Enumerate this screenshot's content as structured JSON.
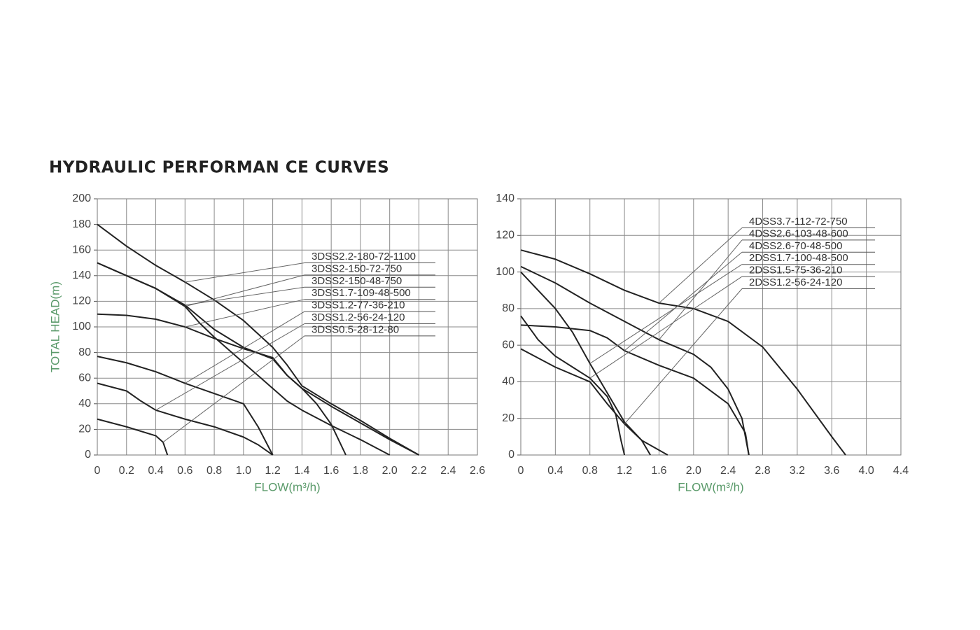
{
  "title": "HYDRAULIC PERFORMAN CE CURVES",
  "chart_data": [
    {
      "type": "line",
      "xlabel": "FLOW(m³/h)",
      "ylabel": "TOTAL HEAD(m)",
      "xlim": [
        0,
        2.6
      ],
      "ylim": [
        0,
        200
      ],
      "xticks": [
        0,
        0.2,
        0.4,
        0.6,
        0.8,
        {
          "value": 1,
          "label": "1.0"
        },
        1.2,
        1.4,
        1.6,
        1.8,
        {
          "value": 2,
          "label": "2.0"
        },
        2.2,
        2.4,
        2.6
      ],
      "yticks": [
        0,
        20,
        40,
        60,
        80,
        100,
        120,
        140,
        160,
        180,
        200
      ],
      "grid": true,
      "series": [
        {
          "name": "3DSS2.2-180-72-1100",
          "color": "#222222",
          "x": [
            0,
            0.2,
            0.4,
            0.6,
            0.8,
            1.0,
            1.2,
            1.3,
            1.4,
            1.6,
            1.8,
            2.0,
            2.2
          ],
          "values": [
            180,
            163,
            148,
            135,
            121,
            105,
            84,
            70,
            54,
            40,
            27,
            13,
            0
          ]
        },
        {
          "name": "3DSS2-150-72-750",
          "color": "#222222",
          "x": [
            0,
            0.2,
            0.4,
            0.6,
            0.7,
            0.8,
            1.0,
            1.2,
            1.3,
            1.4,
            1.6,
            1.8,
            2.0
          ],
          "values": [
            150,
            140,
            130,
            116,
            103,
            92,
            72,
            52,
            42,
            35,
            23,
            12,
            0
          ]
        },
        {
          "name": "3DSS2-150-48-750",
          "color": "#222222",
          "x": [
            0,
            0.2,
            0.4,
            0.6,
            0.8,
            1.0,
            1.2,
            1.3,
            1.4,
            1.5,
            1.6,
            1.7
          ],
          "values": [
            150,
            140,
            130,
            117,
            98,
            84,
            75,
            62,
            52,
            40,
            24,
            0
          ]
        },
        {
          "name": "3DSS1.7-109-48-500",
          "color": "#222222",
          "x": [
            0,
            0.2,
            0.4,
            0.6,
            0.8,
            1.0,
            1.2,
            1.3,
            1.4,
            1.6,
            1.8,
            2.0,
            2.2
          ],
          "values": [
            110,
            109,
            106,
            100,
            91,
            83,
            76,
            62,
            52,
            38,
            25,
            12,
            0
          ]
        },
        {
          "name": "3DSS1.2-77-36-210",
          "color": "#222222",
          "x": [
            0,
            0.2,
            0.4,
            0.6,
            0.8,
            1.0,
            1.1,
            1.2
          ],
          "values": [
            77,
            72,
            65,
            56,
            48,
            40,
            22,
            0
          ]
        },
        {
          "name": "3DSS1.2-56-24-120",
          "color": "#222222",
          "x": [
            0,
            0.2,
            0.3,
            0.4,
            0.6,
            0.8,
            1.0,
            1.1,
            1.2
          ],
          "values": [
            56,
            50,
            42,
            35,
            28,
            22,
            14,
            8,
            0
          ]
        },
        {
          "name": "3DSS0.5-28-12-80",
          "color": "#222222",
          "x": [
            0,
            0.2,
            0.4,
            0.45,
            0.48
          ],
          "values": [
            28,
            22,
            15,
            10,
            0
          ]
        }
      ]
    },
    {
      "type": "line",
      "xlabel": "FLOW(m³/h)",
      "xlim": [
        0,
        4.4
      ],
      "ylim": [
        0,
        140
      ],
      "xticks": [
        0,
        0.4,
        0.8,
        1.2,
        1.6,
        {
          "value": 2,
          "label": "2.0"
        },
        2.4,
        2.8,
        3.2,
        3.6,
        {
          "value": 4,
          "label": "4.0"
        },
        4.4
      ],
      "yticks": [
        0,
        20,
        40,
        60,
        80,
        100,
        120,
        140
      ],
      "grid": true,
      "series": [
        {
          "name": "4DSS3.7-112-72-750",
          "color": "#222222",
          "x": [
            0,
            0.4,
            0.8,
            1.2,
            1.6,
            2.0,
            2.4,
            2.8,
            3.2,
            3.6,
            3.76
          ],
          "values": [
            112,
            107,
            99,
            90,
            83,
            80,
            73,
            59,
            36,
            10,
            0
          ]
        },
        {
          "name": "4DSS2.6-103-48-600",
          "color": "#222222",
          "x": [
            0,
            0.4,
            0.8,
            1.2,
            1.6,
            2.0,
            2.2,
            2.4,
            2.56,
            2.64
          ],
          "values": [
            103,
            94,
            83,
            73,
            63,
            55,
            48,
            36,
            20,
            0
          ]
        },
        {
          "name": "4DSS2.6-70-48-500",
          "color": "#222222",
          "x": [
            0,
            0.4,
            0.8,
            1.0,
            1.2,
            1.6,
            2.0,
            2.4,
            2.6,
            2.64
          ],
          "values": [
            71,
            70,
            68,
            64,
            57,
            49,
            42,
            28,
            12,
            0
          ]
        },
        {
          "name": "2DSS1.7-100-48-500",
          "color": "#222222",
          "x": [
            0,
            0.2,
            0.4,
            0.6,
            0.8,
            1.0,
            1.2,
            1.4,
            1.5
          ],
          "values": [
            100,
            90,
            80,
            67,
            50,
            34,
            18,
            8,
            0
          ]
        },
        {
          "name": "2DSS1.5-75-36-210",
          "color": "#222222",
          "x": [
            0,
            0.2,
            0.4,
            0.6,
            0.8,
            1.0,
            1.1,
            1.16,
            1.2
          ],
          "values": [
            76,
            63,
            54,
            48,
            42,
            32,
            22,
            8,
            0
          ]
        },
        {
          "name": "2DSS1.2-56-24-120",
          "color": "#222222",
          "x": [
            0,
            0.4,
            0.8,
            1.0,
            1.2,
            1.4,
            1.7
          ],
          "values": [
            58,
            48,
            40,
            28,
            17,
            8,
            0
          ]
        }
      ]
    }
  ]
}
